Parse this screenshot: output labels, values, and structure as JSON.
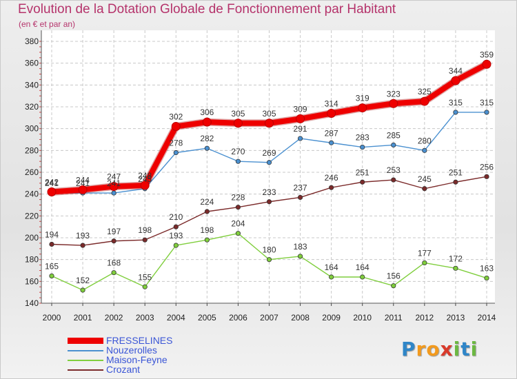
{
  "header": {
    "title": "Evolution de la Dotation Globale de Fonctionnement par Habitant",
    "subtitle": "(en € et par an)"
  },
  "logo": {
    "text": "Proxiti",
    "letters": [
      {
        "ch": "P",
        "color": "#2f86c8"
      },
      {
        "ch": "r",
        "color": "#f29a1e"
      },
      {
        "ch": "o",
        "color": "#f29a1e"
      },
      {
        "ch": "x",
        "color": "#d93a2b"
      },
      {
        "ch": "i",
        "color": "#6cb842"
      },
      {
        "ch": "t",
        "color": "#2f86c8"
      },
      {
        "ch": "i",
        "color": "#6cb842"
      }
    ]
  },
  "chart_data": {
    "type": "line",
    "title": "Evolution de la Dotation Globale de Fonctionnement par Habitant",
    "subtitle": "(en € et par an)",
    "xlabel": "",
    "ylabel": "",
    "x": [
      "2000",
      "2001",
      "2002",
      "2003",
      "2004",
      "2005",
      "2006",
      "2007",
      "2008",
      "2009",
      "2010",
      "2011",
      "2012",
      "2013",
      "2014"
    ],
    "yticks": [
      140,
      160,
      180,
      200,
      220,
      240,
      260,
      280,
      300,
      320,
      340,
      360,
      380
    ],
    "ylim": [
      140,
      380
    ],
    "grid": true,
    "legend_position": "bottom-left",
    "series": [
      {
        "name": "FRESSELINES",
        "color": "#ee0000",
        "emphasis": true,
        "values": [
          242,
          244,
          247,
          248,
          302,
          306,
          305,
          305,
          309,
          314,
          319,
          323,
          325,
          344,
          359
        ],
        "labels": [
          "242",
          "244",
          "247",
          "248",
          "302",
          "306",
          "305",
          "305",
          "309",
          "314",
          "319",
          "323",
          "325",
          "344",
          "359"
        ]
      },
      {
        "name": "Nouzerolles",
        "color": "#4a90d0",
        "values": [
          241,
          241,
          241,
          245,
          278,
          282,
          270,
          269,
          291,
          287,
          283,
          285,
          280,
          315,
          315
        ],
        "labels": [
          "241",
          "241",
          "241",
          "245",
          "278",
          "282",
          "270",
          "269",
          "291",
          "287",
          "283",
          "285",
          "280",
          "315",
          "315"
        ]
      },
      {
        "name": "Maison-Feyne",
        "color": "#7fce3c",
        "values": [
          165,
          152,
          168,
          155,
          193,
          198,
          204,
          180,
          183,
          164,
          164,
          156,
          177,
          172,
          163
        ],
        "labels": [
          "165",
          "152",
          "168",
          "155",
          "193",
          "198",
          "204",
          "180",
          "183",
          "164",
          "164",
          "156",
          "177",
          "172",
          "163"
        ]
      },
      {
        "name": "Crozant",
        "color": "#7b2a2a",
        "values": [
          194,
          193,
          197,
          198,
          210,
          224,
          228,
          233,
          237,
          246,
          251,
          253,
          245,
          251,
          256
        ],
        "labels": [
          "194",
          "193",
          "197",
          "198",
          "210",
          "224",
          "228",
          "233",
          "237",
          "246",
          "251",
          "253",
          "245",
          "251",
          "256"
        ]
      }
    ]
  }
}
